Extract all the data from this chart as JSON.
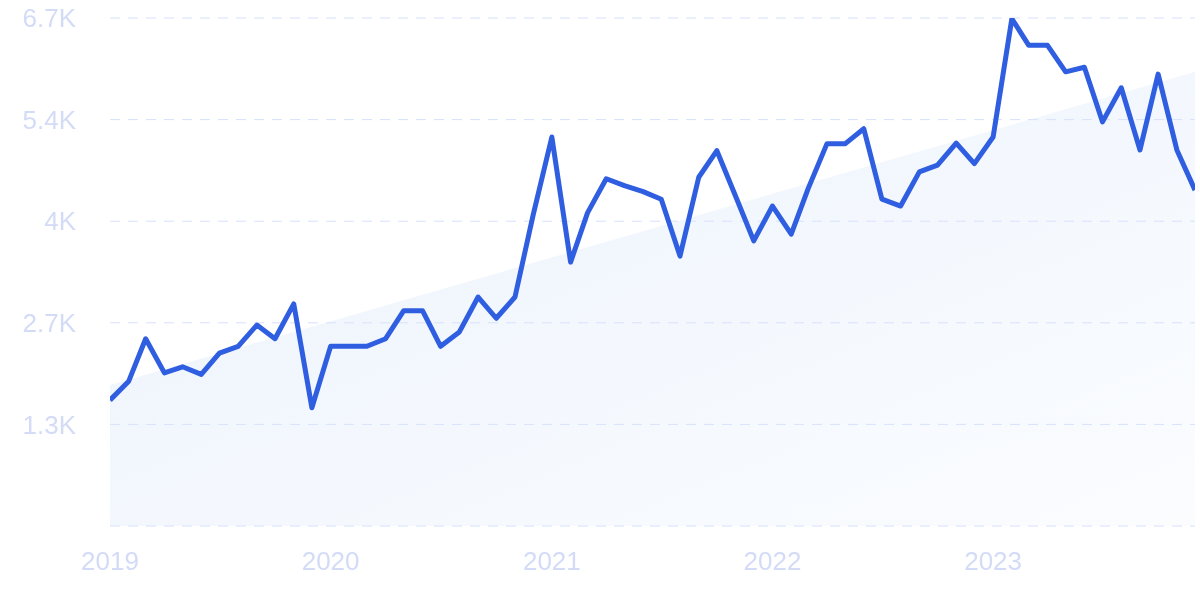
{
  "chart_data": {
    "type": "line",
    "x": [
      "2019-01",
      "2019-02",
      "2019-03",
      "2019-04",
      "2019-05",
      "2019-06",
      "2019-07",
      "2019-08",
      "2019-09",
      "2019-10",
      "2019-11",
      "2019-12",
      "2020-01",
      "2020-02",
      "2020-03",
      "2020-04",
      "2020-05",
      "2020-06",
      "2020-07",
      "2020-08",
      "2020-09",
      "2020-10",
      "2020-11",
      "2020-12",
      "2021-01",
      "2021-02",
      "2021-03",
      "2021-04",
      "2021-05",
      "2021-06",
      "2021-07",
      "2021-08",
      "2021-09",
      "2021-10",
      "2021-11",
      "2021-12",
      "2022-01",
      "2022-02",
      "2022-03",
      "2022-04",
      "2022-05",
      "2022-06",
      "2022-07",
      "2022-08",
      "2022-09",
      "2022-10",
      "2022-11",
      "2022-12",
      "2023-01",
      "2023-02",
      "2023-03",
      "2023-04",
      "2023-05",
      "2023-06",
      "2023-07",
      "2023-08",
      "2023-09",
      "2023-10",
      "2023-11",
      "2023-12"
    ],
    "series": [
      {
        "type": "area",
        "color": "#dbe8fb",
        "x": [
          "2019-01",
          "2023-12"
        ],
        "values": [
          1860,
          5990
        ]
      },
      {
        "color": "#2f5fe0",
        "values": [
          1660,
          1910,
          2470,
          2020,
          2100,
          2000,
          2280,
          2370,
          2650,
          2470,
          2930,
          1560,
          2370,
          2370,
          2370,
          2470,
          2840,
          2840,
          2370,
          2560,
          3020,
          2740,
          3020,
          4100,
          5130,
          3480,
          4130,
          4580,
          4490,
          4410,
          4310,
          3560,
          4600,
          4950,
          4350,
          3760,
          4220,
          3850,
          4450,
          5040,
          5040,
          5240,
          4310,
          4220,
          4670,
          4760,
          5050,
          4780,
          5130,
          6690,
          6340,
          6340,
          5990,
          6050,
          5330,
          5780,
          4960,
          5960,
          4960,
          4430
        ]
      }
    ],
    "xlim": [
      "2019-01",
      "2023-12"
    ],
    "xticks": [
      {
        "value": "2019-01",
        "label": "2019"
      },
      {
        "value": "2020-01",
        "label": "2020"
      },
      {
        "value": "2021-01",
        "label": "2021"
      },
      {
        "value": "2022-01",
        "label": "2022"
      },
      {
        "value": "2023-01",
        "label": "2023"
      }
    ],
    "ylim": [
      0,
      6700
    ],
    "yticks": [
      {
        "value": 1340,
        "label": "1.3K"
      },
      {
        "value": 2680,
        "label": "2.7K"
      },
      {
        "value": 4020,
        "label": "4K"
      },
      {
        "value": 5360,
        "label": "5.4K"
      },
      {
        "value": 6700,
        "label": "6.7K"
      }
    ],
    "grid": "y",
    "legend": false,
    "marker": "none",
    "line_style": "solid"
  }
}
